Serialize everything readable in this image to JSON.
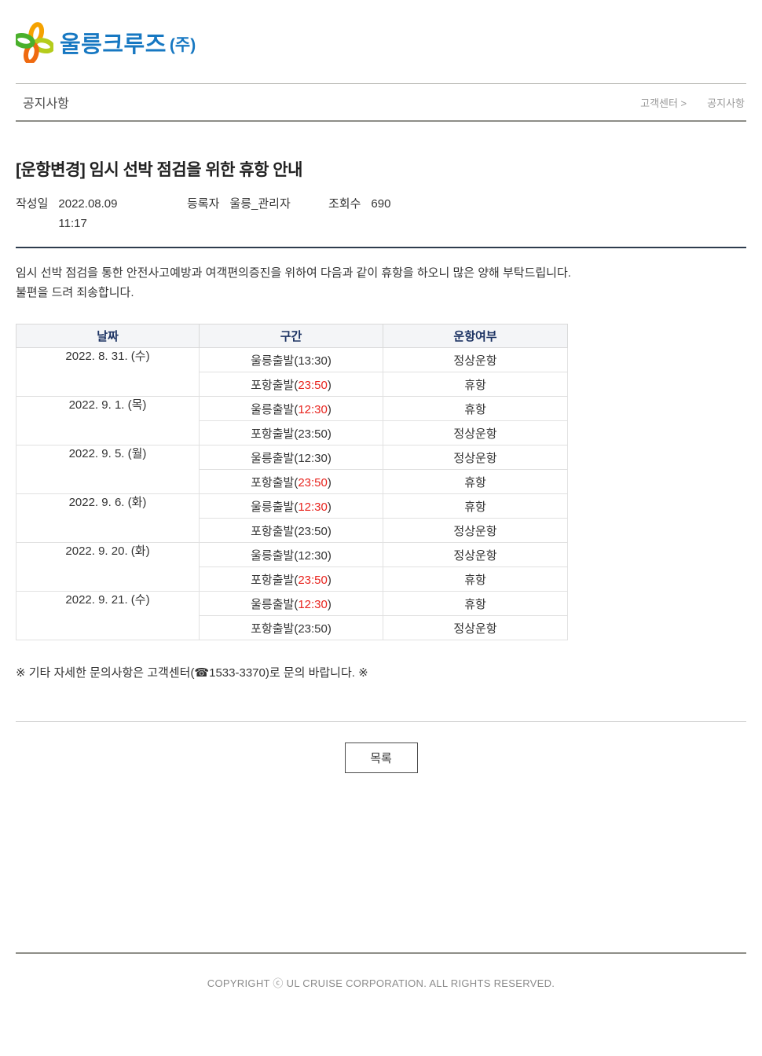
{
  "brand": {
    "name": "울릉크루즈",
    "suffix": "(주)"
  },
  "nav": {
    "section_title": "공지사항",
    "breadcrumb": {
      "parent": "고객센터 >",
      "current": "공지사항"
    }
  },
  "post": {
    "title": "[운항변경] 임시 선박 점검을 위한 휴항 안내",
    "meta": {
      "date_label": "작성일",
      "date_value": "2022.08.09 11:17",
      "author_label": "등록자",
      "author_value": "울릉_관리자",
      "views_label": "조회수",
      "views_value": "690"
    },
    "body_lines": [
      "임시 선박 점검을 통한 안전사고예방과 여객편의증진을 위하여 다음과 같이 휴항을 하오니 많은 양해 부탁드립니다.",
      "불편을 드려 죄송합니다."
    ],
    "note": "※ 기타 자세한 문의사항은 고객센터(☎1533-3370)로 문의 바랍니다. ※"
  },
  "schedule_table": {
    "headers": [
      "날짜",
      "구간",
      "운항여부"
    ],
    "groups": [
      {
        "date": "2022. 8. 31. (수)",
        "rows": [
          {
            "segment_prefix": "울릉출발(",
            "time": "13:30",
            "segment_suffix": ")",
            "time_highlight": false,
            "status": "정상운항",
            "status_highlight": false
          },
          {
            "segment_prefix": "포항출발(",
            "time": "23:50",
            "segment_suffix": ")",
            "time_highlight": true,
            "status": "휴항",
            "status_highlight": true
          }
        ]
      },
      {
        "date": "2022. 9. 1. (목)",
        "rows": [
          {
            "segment_prefix": "울릉출발(",
            "time": "12:30",
            "segment_suffix": ")",
            "time_highlight": true,
            "status": "휴항",
            "status_highlight": true
          },
          {
            "segment_prefix": "포항출발(",
            "time": "23:50",
            "segment_suffix": ")",
            "time_highlight": false,
            "status": "정상운항",
            "status_highlight": false
          }
        ]
      },
      {
        "date": "2022. 9. 5. (월)",
        "rows": [
          {
            "segment_prefix": "울릉출발(",
            "time": "12:30",
            "segment_suffix": ")",
            "time_highlight": false,
            "status": "정상운항",
            "status_highlight": false
          },
          {
            "segment_prefix": "포항출발(",
            "time": "23:50",
            "segment_suffix": ")",
            "time_highlight": true,
            "status": "휴항",
            "status_highlight": true
          }
        ]
      },
      {
        "date": "2022. 9. 6. (화)",
        "rows": [
          {
            "segment_prefix": "울릉출발(",
            "time": "12:30",
            "segment_suffix": ")",
            "time_highlight": true,
            "status": "휴항",
            "status_highlight": true
          },
          {
            "segment_prefix": "포항출발(",
            "time": "23:50",
            "segment_suffix": ")",
            "time_highlight": false,
            "status": "정상운항",
            "status_highlight": false
          }
        ]
      },
      {
        "date": "2022. 9. 20. (화)",
        "rows": [
          {
            "segment_prefix": "울릉출발(",
            "time": "12:30",
            "segment_suffix": ")",
            "time_highlight": false,
            "status": "정상운항",
            "status_highlight": false
          },
          {
            "segment_prefix": "포항출발(",
            "time": "23:50",
            "segment_suffix": ")",
            "time_highlight": true,
            "status": "휴항",
            "status_highlight": true
          }
        ]
      },
      {
        "date": "2022. 9. 21. (수)",
        "rows": [
          {
            "segment_prefix": "울릉출발(",
            "time": "12:30",
            "segment_suffix": ")",
            "time_highlight": true,
            "status": "휴항",
            "status_highlight": true
          },
          {
            "segment_prefix": "포항출발(",
            "time": "23:50",
            "segment_suffix": ")",
            "time_highlight": false,
            "status": "정상운항",
            "status_highlight": false
          }
        ]
      }
    ]
  },
  "actions": {
    "list_button": "목록"
  },
  "footer": {
    "copyright": "COPYRIGHT ⓒ UL CRUISE CORPORATION. ALL RIGHTS RESERVED."
  },
  "colors": {
    "brand_blue": "#1778c2",
    "table_header_text": "#1e3464",
    "highlight_red": "#e8231d"
  }
}
